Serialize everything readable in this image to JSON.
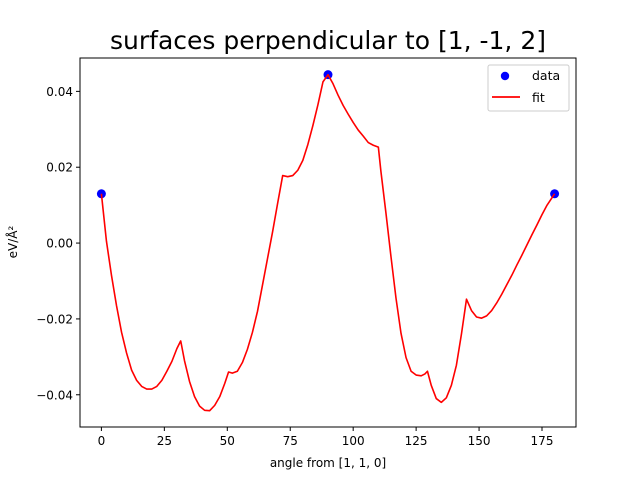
{
  "chart_data": {
    "type": "line",
    "title": "surfaces perpendicular to [1, -1, 2]",
    "xlabel": "angle from [1, 1, 0]",
    "ylabel": "eV/Å²",
    "xlim": [
      -8.5,
      188.5
    ],
    "ylim": [
      -0.0485,
      0.0488
    ],
    "xticks": [
      0,
      25,
      50,
      75,
      100,
      125,
      150,
      175
    ],
    "yticks": [
      -0.04,
      -0.02,
      0.0,
      0.02,
      0.04
    ],
    "ytick_labels": [
      "−0.04",
      "−0.02",
      "0.00",
      "0.02",
      "0.04"
    ],
    "grid": false,
    "legend_position": "top-right",
    "series": [
      {
        "name": "data",
        "kind": "scatter",
        "color": "#0000ff",
        "x": [
          0,
          90,
          180
        ],
        "y": [
          0.013,
          0.0444,
          0.013
        ]
      },
      {
        "name": "fit",
        "kind": "line",
        "color": "#ff0000",
        "x": [
          0,
          2,
          4,
          6,
          8,
          10,
          12,
          14,
          16,
          18,
          20,
          22,
          24,
          26,
          28,
          30,
          31.5,
          33,
          35,
          37,
          39,
          41,
          43,
          45,
          47,
          49,
          50.5,
          52,
          54,
          56,
          58,
          60,
          62,
          64,
          66,
          68,
          70,
          72,
          74,
          76,
          78,
          80,
          82,
          84,
          86,
          88,
          90,
          92,
          94,
          96,
          98,
          100,
          102,
          104,
          106,
          108,
          110,
          111,
          113,
          115,
          117,
          119,
          121,
          123,
          125,
          127,
          128.5,
          129.5,
          131,
          133,
          135,
          137,
          139,
          141,
          143,
          145,
          147,
          149,
          151,
          153,
          155,
          157,
          159,
          161,
          163,
          165,
          167,
          169,
          171,
          173,
          175,
          177,
          180
        ],
        "y": [
          0.013,
          0.0005,
          -0.0085,
          -0.0165,
          -0.0235,
          -0.029,
          -0.0335,
          -0.0362,
          -0.0378,
          -0.0385,
          -0.0385,
          -0.0378,
          -0.0362,
          -0.0338,
          -0.0312,
          -0.0278,
          -0.0258,
          -0.031,
          -0.0365,
          -0.0405,
          -0.043,
          -0.0441,
          -0.0442,
          -0.0428,
          -0.0405,
          -0.037,
          -0.034,
          -0.0343,
          -0.0338,
          -0.0315,
          -0.028,
          -0.0235,
          -0.018,
          -0.011,
          -0.004,
          0.003,
          0.0105,
          0.0178,
          0.0175,
          0.0178,
          0.0192,
          0.0218,
          0.026,
          0.031,
          0.0365,
          0.0425,
          0.0444,
          0.042,
          0.039,
          0.0363,
          0.034,
          0.0318,
          0.0298,
          0.0282,
          0.0265,
          0.0258,
          0.0253,
          0.019,
          0.008,
          -0.0035,
          -0.0145,
          -0.0238,
          -0.0302,
          -0.0338,
          -0.0348,
          -0.035,
          -0.0345,
          -0.0338,
          -0.0375,
          -0.041,
          -0.042,
          -0.0408,
          -0.0375,
          -0.0322,
          -0.024,
          -0.0148,
          -0.0178,
          -0.0195,
          -0.0198,
          -0.0192,
          -0.0178,
          -0.0158,
          -0.0135,
          -0.011,
          -0.0085,
          -0.0058,
          -0.0032,
          -0.0005,
          0.0022,
          0.0048,
          0.0075,
          0.01,
          0.013
        ]
      }
    ]
  }
}
